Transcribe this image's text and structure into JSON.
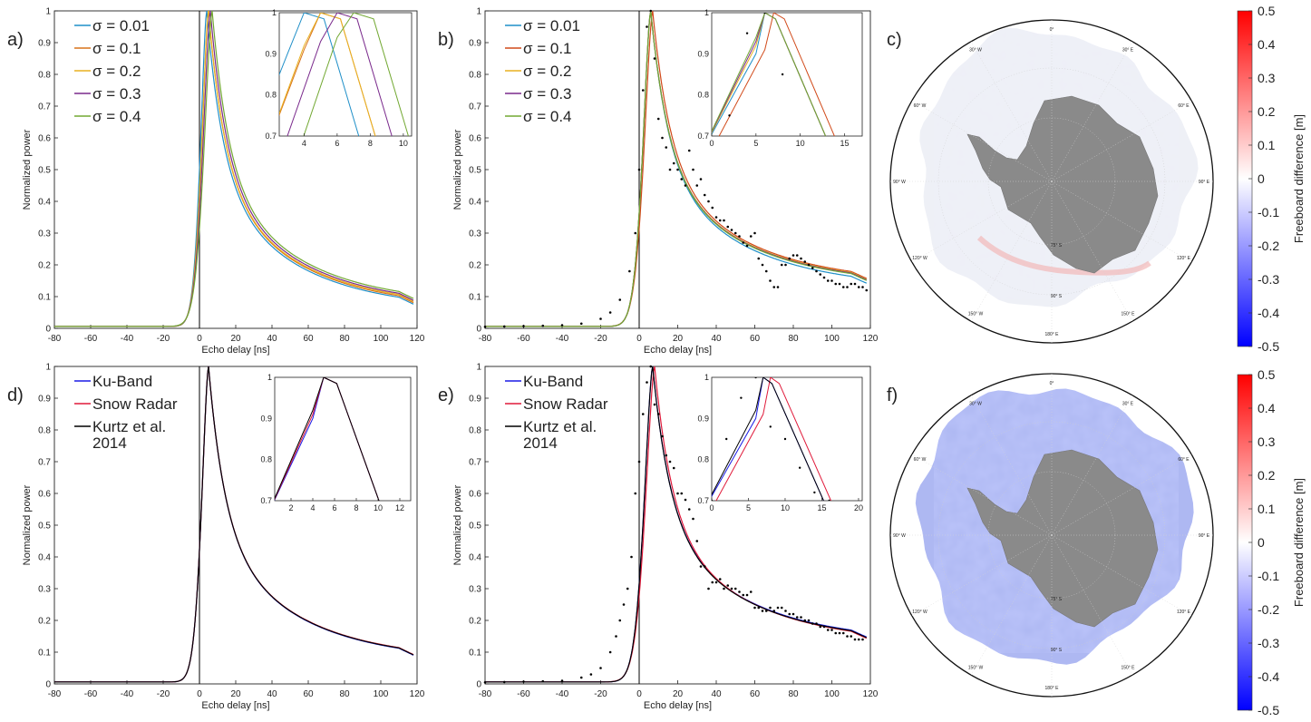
{
  "figure": {
    "panel_labels": [
      "a)",
      "b)",
      "c)",
      "d)",
      "e)",
      "f)"
    ],
    "colorbar": {
      "label": "Freeboard difference [m]",
      "ticks": [
        "0.5",
        "0.4",
        "0.3",
        "0.2",
        "0.1",
        "0",
        "-0.1",
        "-0.2",
        "-0.3",
        "-0.4",
        "-0.5"
      ],
      "low_color": "#0000ff",
      "mid_color": "#ffffff",
      "high_color": "#ff0000"
    },
    "map": {
      "land_color": "#8a8a8a",
      "lon_labels": [
        "0°",
        "30° E",
        "60° E",
        "90° E",
        "120° E",
        "150° E",
        "180° E",
        "150° W",
        "120° W",
        "90° W",
        "60° W",
        "30° W"
      ],
      "lat_labels": [
        "75° S",
        "90° S"
      ]
    }
  },
  "chart_data": [
    {
      "id": "a",
      "type": "line",
      "xlabel": "Echo delay [ns]",
      "ylabel": "Normalized power",
      "xlim": [
        -80,
        120
      ],
      "ylim": [
        0,
        1
      ],
      "xticks": [
        -80,
        -60,
        -40,
        -20,
        0,
        20,
        40,
        60,
        80,
        100,
        120
      ],
      "yticks": [
        0,
        0.1,
        0.2,
        0.3,
        0.4,
        0.5,
        0.6,
        0.7,
        0.8,
        0.9,
        1
      ],
      "legend": "top-left",
      "series": [
        {
          "name": "σ = 0.01",
          "color": "#1f8fc8",
          "peak": 4,
          "tail": 0.058
        },
        {
          "name": "σ = 0.1",
          "color": "#d9731a",
          "peak": 5,
          "tail": 0.062
        },
        {
          "name": "σ = 0.2",
          "color": "#e8b120",
          "peak": 5,
          "tail": 0.066
        },
        {
          "name": "σ = 0.3",
          "color": "#7a2a8c",
          "peak": 6,
          "tail": 0.069
        },
        {
          "name": "σ = 0.4",
          "color": "#72a832",
          "peak": 7,
          "tail": 0.074
        }
      ],
      "inset": {
        "xlim": [
          2.5,
          10.5
        ],
        "ylim": [
          0.7,
          1
        ],
        "xticks": [
          4,
          6,
          8,
          10
        ],
        "yticks": [
          0.7,
          0.8,
          0.9,
          1
        ]
      }
    },
    {
      "id": "b",
      "type": "line",
      "xlabel": "Echo delay [ns]",
      "ylabel": "Normalized power",
      "xlim": [
        -80,
        120
      ],
      "ylim": [
        0,
        1
      ],
      "xticks": [
        -80,
        -60,
        -40,
        -20,
        0,
        20,
        40,
        60,
        80,
        100,
        120
      ],
      "yticks": [
        0,
        0.1,
        0.2,
        0.3,
        0.4,
        0.5,
        0.6,
        0.7,
        0.8,
        0.9,
        1
      ],
      "legend": "top-left",
      "series": [
        {
          "name": "σ = 0.01",
          "color": "#1f8fc8",
          "peak": 6,
          "tail": 0.125
        },
        {
          "name": "σ = 0.1",
          "color": "#d14a1a",
          "peak": 7,
          "tail": 0.14
        },
        {
          "name": "σ = 0.2",
          "color": "#e8b120",
          "peak": 6,
          "tail": 0.138
        },
        {
          "name": "σ = 0.3",
          "color": "#7a2a8c",
          "peak": 6,
          "tail": 0.136
        },
        {
          "name": "σ = 0.4",
          "color": "#72a832",
          "peak": 6,
          "tail": 0.134
        }
      ],
      "observed": {
        "x": [
          -80,
          -70,
          -60,
          -50,
          -40,
          -30,
          -20,
          -15,
          -10,
          -5,
          -2,
          0,
          2,
          4,
          6,
          8,
          10,
          12,
          14,
          16,
          18,
          20,
          22,
          24,
          26,
          28,
          30,
          32,
          34,
          36,
          38,
          40,
          42,
          44,
          46,
          48,
          50,
          52,
          54,
          56,
          58,
          60,
          62,
          64,
          66,
          68,
          70,
          72,
          74,
          76,
          78,
          80,
          82,
          84,
          86,
          88,
          90,
          92,
          94,
          96,
          98,
          100,
          102,
          104,
          106,
          108,
          110,
          112,
          114,
          116,
          118
        ],
        "y": [
          0.005,
          0.006,
          0.007,
          0.008,
          0.01,
          0.015,
          0.03,
          0.05,
          0.09,
          0.18,
          0.3,
          0.5,
          0.75,
          0.95,
          1.0,
          0.85,
          0.66,
          0.6,
          0.57,
          0.5,
          0.52,
          0.5,
          0.47,
          0.45,
          0.56,
          0.5,
          0.45,
          0.47,
          0.42,
          0.4,
          0.38,
          0.35,
          0.34,
          0.34,
          0.32,
          0.31,
          0.3,
          0.29,
          0.27,
          0.26,
          0.29,
          0.3,
          0.22,
          0.2,
          0.18,
          0.15,
          0.13,
          0.13,
          0.2,
          0.2,
          0.22,
          0.23,
          0.23,
          0.22,
          0.21,
          0.2,
          0.19,
          0.18,
          0.17,
          0.16,
          0.15,
          0.15,
          0.14,
          0.14,
          0.13,
          0.13,
          0.14,
          0.14,
          0.13,
          0.13,
          0.12
        ]
      },
      "inset": {
        "xlim": [
          0,
          17
        ],
        "ylim": [
          0.7,
          1
        ],
        "xticks": [
          0,
          5,
          10,
          15
        ],
        "yticks": [
          0.7,
          0.8,
          0.9,
          1
        ]
      }
    },
    {
      "id": "d",
      "type": "line",
      "xlabel": "Echo delay [ns]",
      "ylabel": "Normalized power",
      "xlim": [
        -80,
        120
      ],
      "ylim": [
        0,
        1
      ],
      "xticks": [
        -80,
        -60,
        -40,
        -20,
        0,
        20,
        40,
        60,
        80,
        100,
        120
      ],
      "yticks": [
        0,
        0.1,
        0.2,
        0.3,
        0.4,
        0.5,
        0.6,
        0.7,
        0.8,
        0.9,
        1
      ],
      "legend": "top-left",
      "series": [
        {
          "name": "Ku-Band",
          "color": "#1a1ae6",
          "peak": 5,
          "tail": 0.072
        },
        {
          "name": "Snow Radar",
          "color": "#e01a3a",
          "peak": 5,
          "tail": 0.074
        },
        {
          "name": "Kurtz et al. 2014",
          "legend_lines": [
            "Kurtz et al.",
            " 2014"
          ],
          "color": "#000000",
          "peak": 5,
          "tail": 0.073
        }
      ],
      "inset": {
        "xlim": [
          0.5,
          13
        ],
        "ylim": [
          0.7,
          1
        ],
        "xticks": [
          2,
          4,
          6,
          8,
          10,
          12
        ],
        "yticks": [
          0.7,
          0.8,
          0.9,
          1
        ]
      }
    },
    {
      "id": "e",
      "type": "line",
      "xlabel": "Echo delay [ns]",
      "ylabel": "Normalized power",
      "xlim": [
        -80,
        120
      ],
      "ylim": [
        0,
        1
      ],
      "xticks": [
        -80,
        -60,
        -40,
        -20,
        0,
        20,
        40,
        60,
        80,
        100,
        120
      ],
      "yticks": [
        0,
        0.1,
        0.2,
        0.3,
        0.4,
        0.5,
        0.6,
        0.7,
        0.8,
        0.9,
        1
      ],
      "legend": "top-left",
      "series": [
        {
          "name": "Ku-Band",
          "color": "#1a1ae6",
          "peak": 7,
          "tail": 0.13
        },
        {
          "name": "Snow Radar",
          "color": "#e01a3a",
          "peak": 8,
          "tail": 0.125
        },
        {
          "name": "Kurtz et al. 2014",
          "legend_lines": [
            "Kurtz et al.",
            " 2014"
          ],
          "color": "#000000",
          "peak": 7,
          "tail": 0.128
        }
      ],
      "observed": {
        "x": [
          -80,
          -70,
          -60,
          -50,
          -40,
          -30,
          -25,
          -20,
          -15,
          -12,
          -10,
          -8,
          -6,
          -4,
          -2,
          0,
          2,
          4,
          6,
          8,
          10,
          12,
          14,
          16,
          18,
          20,
          22,
          24,
          26,
          28,
          30,
          32,
          34,
          36,
          38,
          40,
          42,
          44,
          46,
          48,
          50,
          52,
          54,
          56,
          58,
          60,
          62,
          64,
          66,
          68,
          70,
          72,
          74,
          76,
          78,
          80,
          82,
          84,
          86,
          88,
          90,
          92,
          94,
          96,
          98,
          100,
          102,
          104,
          106,
          108,
          110,
          112,
          114,
          116
        ],
        "y": [
          0.005,
          0.006,
          0.007,
          0.008,
          0.01,
          0.02,
          0.03,
          0.05,
          0.1,
          0.15,
          0.2,
          0.25,
          0.3,
          0.4,
          0.6,
          0.7,
          0.85,
          0.95,
          1.0,
          0.88,
          0.85,
          0.78,
          0.72,
          0.7,
          0.68,
          0.6,
          0.6,
          0.58,
          0.55,
          0.52,
          0.45,
          0.37,
          0.37,
          0.3,
          0.32,
          0.32,
          0.33,
          0.3,
          0.31,
          0.3,
          0.3,
          0.29,
          0.28,
          0.28,
          0.29,
          0.24,
          0.24,
          0.23,
          0.23,
          0.24,
          0.23,
          0.24,
          0.24,
          0.23,
          0.22,
          0.22,
          0.21,
          0.21,
          0.2,
          0.2,
          0.19,
          0.19,
          0.18,
          0.18,
          0.17,
          0.17,
          0.16,
          0.16,
          0.16,
          0.15,
          0.15,
          0.14,
          0.14,
          0.14
        ]
      },
      "inset": {
        "xlim": [
          0,
          20.5
        ],
        "ylim": [
          0.7,
          1
        ],
        "xticks": [
          0,
          5,
          10,
          15,
          20
        ],
        "yticks": [
          0.7,
          0.8,
          0.9,
          1
        ]
      }
    }
  ]
}
